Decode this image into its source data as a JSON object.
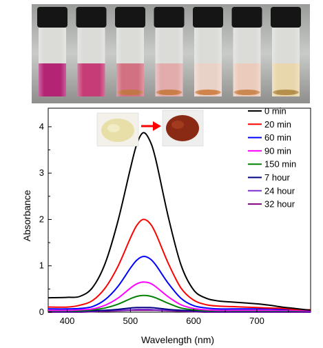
{
  "chart_data": {
    "type": "line",
    "title": "",
    "xlabel": "Wavelength (nm)",
    "ylabel": "Absorbance",
    "xlim": [
      370,
      785
    ],
    "ylim": [
      0,
      4.4
    ],
    "xticks": [
      400,
      500,
      600,
      700
    ],
    "yticks": [
      0,
      1,
      2,
      3,
      4
    ],
    "grid": false,
    "legend_position": "top-right",
    "series": [
      {
        "name": "0 min",
        "color": "#000000",
        "peak": 3.87,
        "peak_x": 520,
        "x": [
          370,
          400,
          420,
          440,
          460,
          480,
          500,
          510,
          520,
          530,
          540,
          560,
          580,
          600,
          620,
          640,
          660,
          680,
          700,
          720,
          740,
          760,
          785
        ],
        "y": [
          0.31,
          0.32,
          0.34,
          0.53,
          1.05,
          1.95,
          3.1,
          3.62,
          3.87,
          3.72,
          3.3,
          2.05,
          1.02,
          0.48,
          0.3,
          0.24,
          0.22,
          0.2,
          0.18,
          0.15,
          0.11,
          0.08,
          0.04
        ]
      },
      {
        "name": "20 min",
        "color": "#ff0000",
        "peak": 2.0,
        "peak_x": 520,
        "x": [
          370,
          400,
          420,
          440,
          460,
          480,
          500,
          510,
          520,
          530,
          540,
          560,
          580,
          600,
          620,
          640,
          660,
          680,
          700,
          720,
          740,
          760,
          785
        ],
        "y": [
          0.11,
          0.11,
          0.15,
          0.25,
          0.52,
          0.98,
          1.6,
          1.87,
          2.0,
          1.93,
          1.7,
          1.05,
          0.52,
          0.26,
          0.16,
          0.13,
          0.12,
          0.11,
          0.1,
          0.09,
          0.08,
          0.06,
          0.05
        ]
      },
      {
        "name": "60 min",
        "color": "#0000ff",
        "peak": 1.2,
        "peak_x": 520,
        "x": [
          370,
          400,
          420,
          440,
          460,
          480,
          500,
          510,
          520,
          530,
          540,
          560,
          580,
          600,
          620,
          640,
          660,
          680,
          700,
          720,
          740,
          760,
          785
        ],
        "y": [
          0.07,
          0.07,
          0.08,
          0.12,
          0.27,
          0.55,
          0.95,
          1.12,
          1.2,
          1.16,
          1.02,
          0.62,
          0.3,
          0.14,
          0.09,
          0.07,
          0.07,
          0.07,
          0.07,
          0.07,
          0.06,
          0.06,
          0.05
        ]
      },
      {
        "name": "90 min",
        "color": "#ff00ff",
        "peak": 0.65,
        "peak_x": 520,
        "x": [
          370,
          400,
          420,
          440,
          460,
          480,
          500,
          510,
          520,
          530,
          540,
          560,
          580,
          600,
          620,
          640,
          660,
          680,
          700,
          720,
          740,
          760,
          785
        ],
        "y": [
          0.04,
          0.04,
          0.05,
          0.07,
          0.15,
          0.3,
          0.52,
          0.61,
          0.65,
          0.63,
          0.55,
          0.33,
          0.16,
          0.08,
          0.05,
          0.04,
          0.04,
          0.04,
          0.04,
          0.04,
          0.04,
          0.04,
          0.03
        ]
      },
      {
        "name": "150 min",
        "color": "#008000",
        "peak": 0.36,
        "peak_x": 520,
        "x": [
          370,
          400,
          420,
          440,
          460,
          480,
          500,
          510,
          520,
          530,
          540,
          560,
          580,
          600,
          620,
          640,
          660,
          680,
          700,
          720,
          740,
          760,
          785
        ],
        "y": [
          0.03,
          0.03,
          0.03,
          0.05,
          0.09,
          0.17,
          0.29,
          0.34,
          0.36,
          0.35,
          0.31,
          0.19,
          0.09,
          0.05,
          0.03,
          0.03,
          0.03,
          0.03,
          0.03,
          0.03,
          0.03,
          0.03,
          0.03
        ]
      },
      {
        "name": "7 hour",
        "color": "#000080",
        "peak": 0.1,
        "peak_x": 520,
        "x": [
          370,
          400,
          420,
          440,
          460,
          480,
          500,
          510,
          520,
          530,
          540,
          560,
          580,
          600,
          620,
          640,
          660,
          680,
          700,
          720,
          740,
          760,
          785
        ],
        "y": [
          0.02,
          0.02,
          0.02,
          0.03,
          0.04,
          0.06,
          0.09,
          0.1,
          0.1,
          0.1,
          0.09,
          0.06,
          0.04,
          0.03,
          0.02,
          0.02,
          0.02,
          0.02,
          0.02,
          0.02,
          0.02,
          0.02,
          0.02
        ]
      },
      {
        "name": "24 hour",
        "color": "#7b2fd0",
        "peak": 0.06,
        "peak_x": 520,
        "x": [
          370,
          400,
          420,
          440,
          460,
          480,
          500,
          510,
          520,
          530,
          540,
          560,
          580,
          600,
          620,
          640,
          660,
          680,
          700,
          720,
          740,
          760,
          785
        ],
        "y": [
          0.01,
          0.01,
          0.01,
          0.02,
          0.03,
          0.04,
          0.05,
          0.06,
          0.06,
          0.06,
          0.05,
          0.04,
          0.03,
          0.02,
          0.01,
          0.01,
          0.01,
          0.01,
          0.01,
          0.01,
          0.01,
          0.01,
          0.01
        ]
      },
      {
        "name": "32 hour",
        "color": "#800080",
        "peak": 0.04,
        "peak_x": 520,
        "x": [
          370,
          400,
          420,
          440,
          460,
          480,
          500,
          510,
          520,
          530,
          540,
          560,
          580,
          600,
          620,
          640,
          660,
          680,
          700,
          720,
          740,
          760,
          785
        ],
        "y": [
          0.0,
          0.0,
          0.0,
          0.01,
          0.02,
          0.03,
          0.04,
          0.04,
          0.04,
          0.04,
          0.04,
          0.03,
          0.02,
          0.01,
          0.0,
          0.0,
          0.0,
          0.0,
          0.0,
          0.0,
          0.0,
          0.0,
          0.0
        ]
      }
    ]
  },
  "photo": {
    "vials": [
      {
        "liquid_color": "#b0186e",
        "sediment_color": ""
      },
      {
        "liquid_color": "#c2326f",
        "sediment_color": ""
      },
      {
        "liquid_color": "#d06a7a",
        "sediment_color": "#c0703e"
      },
      {
        "liquid_color": "#e0a8a8",
        "sediment_color": "#c8763f"
      },
      {
        "liquid_color": "#e9cfc5",
        "sediment_color": "#cd7e42"
      },
      {
        "liquid_color": "#eac9b8",
        "sediment_color": "#c98248"
      },
      {
        "liquid_color": "#e8d4a8",
        "sediment_color": "#b08a40"
      }
    ]
  },
  "inset": {
    "before_color": "#e8dfa8",
    "after_color": "#8a2a14",
    "arrow_color": "#ff0000"
  }
}
